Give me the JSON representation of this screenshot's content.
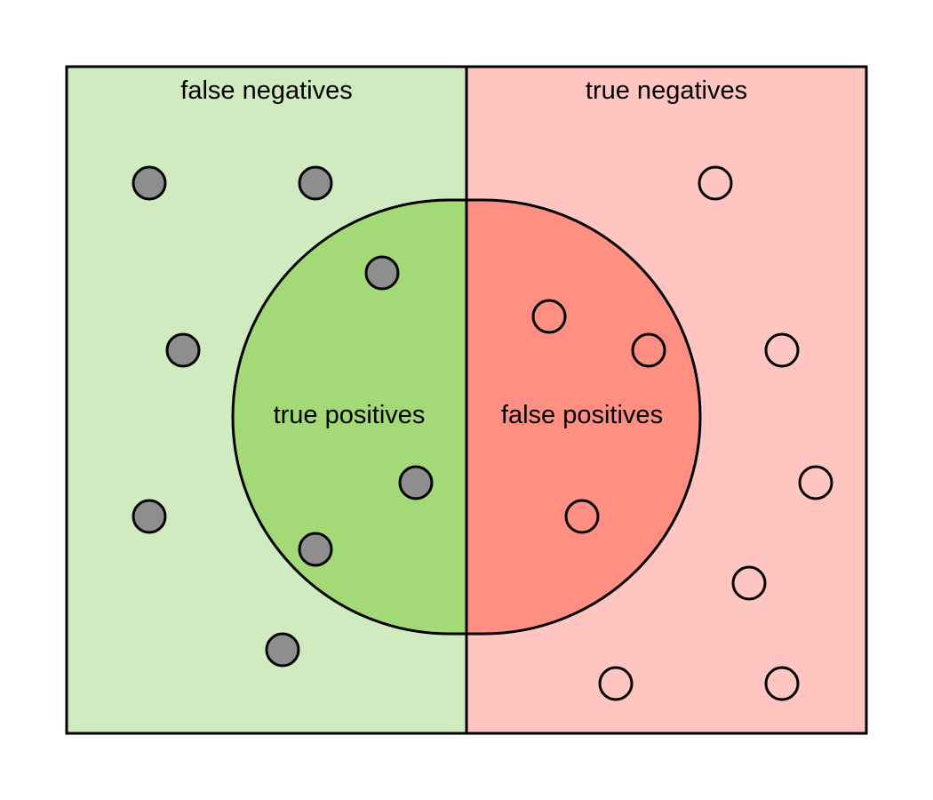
{
  "labels": {
    "false_negatives": "false negatives",
    "true_negatives": "true negatives",
    "true_positives": "true positives",
    "false_positives": "false positives"
  },
  "colors": {
    "false_negatives_bg": "#d0ebbf",
    "true_negatives_bg": "#ffc6c1",
    "true_positives_fill": "#a3d977",
    "false_positives_fill": "#ff8f82",
    "positive_dot": "#8e8e8e",
    "negative_dot": "#ffffff",
    "outline": "#000000"
  }
}
